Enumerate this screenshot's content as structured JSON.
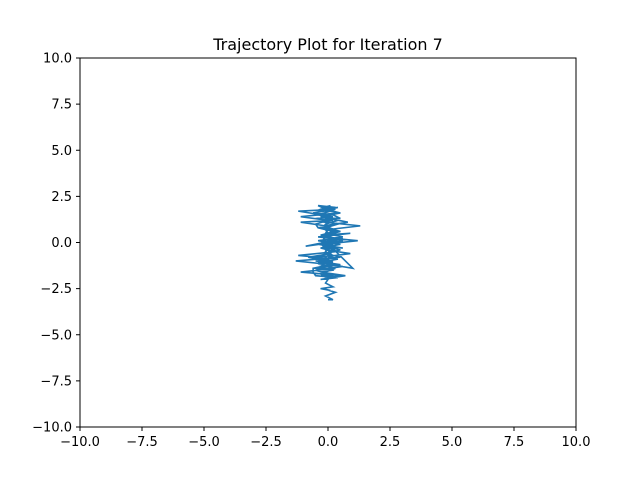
{
  "chart_data": {
    "type": "line",
    "title": "Trajectory Plot for Iteration 7",
    "xlabel": "",
    "ylabel": "",
    "xlim": [
      -10,
      10
    ],
    "ylim": [
      -10,
      10
    ],
    "xticks": [
      -10,
      -7.5,
      -5,
      -2.5,
      0,
      2.5,
      5,
      7.5,
      10
    ],
    "yticks": [
      -10,
      -7.5,
      -5,
      -2.5,
      0,
      2.5,
      5,
      7.5,
      10
    ],
    "xtick_labels": [
      "−10.0",
      "−7.5",
      "−5.0",
      "−2.5",
      "0.0",
      "2.5",
      "5.0",
      "7.5",
      "10.0"
    ],
    "ytick_labels": [
      "−10.0",
      "−7.5",
      "−5.0",
      "−2.5",
      "0.0",
      "2.5",
      "5.0",
      "7.5",
      "10.0"
    ],
    "grid": false,
    "series": [
      {
        "color": "#1f77b4",
        "x": [
          0.0,
          0.2,
          -0.1,
          0.3,
          -0.2,
          0.1,
          -0.3,
          0.2,
          -0.1,
          0.0,
          -0.2,
          0.4,
          -0.3,
          0.1,
          -0.1,
          0.3,
          -0.6,
          0.5,
          -0.5,
          0.2,
          -0.8,
          0.3,
          0.9,
          -0.1,
          -0.2,
          0.6,
          -0.4,
          0.2,
          -0.9,
          0.6,
          -0.1,
          0.0,
          -0.1,
          0.4,
          -0.1,
          -1.1,
          0.2,
          -0.5,
          0.2,
          -1.2,
          0.3,
          -0.2,
          0.1,
          -0.3,
          0.4,
          -0.6,
          0.2,
          0.5,
          -0.3,
          0.8,
          -0.2,
          0.4,
          -0.4,
          0.2,
          -0.2,
          0.3,
          -0.2,
          0.6,
          -0.3,
          0.3,
          -0.1,
          0.1,
          -0.1,
          0.5,
          -1.3,
          0.1,
          -0.6,
          -0.6,
          -0.5,
          0.4,
          -0.3,
          0.7,
          -0.3,
          0.2,
          0.1,
          -0.2,
          -0.1,
          0.2,
          -0.1,
          0.0,
          -0.2,
          1.2,
          -0.4,
          0.9,
          -0.3,
          0.3,
          -0.2,
          -0.1,
          0.4,
          -0.3,
          0.5,
          -0.1,
          0.3,
          -0.4,
          0.1,
          -0.4,
          0.2,
          -0.1,
          1.3,
          0.0,
          -0.1,
          0.6,
          -0.4,
          0.5,
          -0.3,
          0.3,
          -1.2,
          0.4,
          -0.4,
          0.6,
          -0.5,
          0.0,
          -0.1,
          0.6,
          -1.1,
          0.3,
          -0.3,
          0.2,
          -0.8,
          0.1,
          0.0,
          0.2,
          -0.2,
          0.3,
          -0.1,
          0.5,
          -0.1,
          0.4,
          -0.2,
          0.1,
          -0.6,
          0.3,
          -0.2,
          0.1,
          -0.3,
          0.4,
          -1.1,
          0.0,
          -0.5,
          -0.4,
          0.2,
          -0.1,
          0.0,
          0.3,
          -0.2,
          0.5,
          -0.1,
          0.2,
          -0.2,
          0.1,
          1.0,
          -0.2,
          0.3,
          -0.1,
          0.2,
          0.1,
          -0.1,
          0.0
        ],
        "y": [
          -3.1,
          -3.1,
          -2.9,
          -2.7,
          -2.5,
          -2.6,
          -2.5,
          -2.4,
          -2.2,
          -2.0,
          -1.8,
          -1.9,
          -1.7,
          -1.8,
          -1.6,
          -1.4,
          -1.4,
          -1.2,
          -1.0,
          -1.1,
          -0.8,
          -0.7,
          -0.6,
          -0.4,
          -0.2,
          -0.3,
          -0.1,
          0.0,
          -0.2,
          0.2,
          0.3,
          0.5,
          0.7,
          0.6,
          0.9,
          1.1,
          1.2,
          1.3,
          1.4,
          1.7,
          1.8,
          1.9,
          2.0,
          1.8,
          1.9,
          1.6,
          1.5,
          1.3,
          1.4,
          1.1,
          0.9,
          1.0,
          0.8,
          0.6,
          0.4,
          0.5,
          0.3,
          0.1,
          -0.1,
          0.0,
          -0.3,
          -0.5,
          -0.6,
          -0.8,
          -1.0,
          -1.2,
          -1.4,
          -1.6,
          -1.8,
          -1.9,
          -2.0,
          -1.8,
          -1.6,
          -1.5,
          -1.3,
          -1.1,
          -0.9,
          -0.7,
          -0.5,
          -0.3,
          -0.1,
          0.1,
          0.3,
          0.5,
          0.4,
          0.6,
          0.8,
          1.0,
          1.2,
          1.4,
          1.6,
          1.8,
          1.9,
          2.0,
          1.7,
          1.5,
          1.3,
          1.1,
          0.9,
          0.7,
          0.5,
          0.3,
          0.1,
          -0.1,
          -0.3,
          -0.5,
          -0.7,
          -0.9,
          -1.1,
          -1.3,
          -1.5,
          -1.7,
          -1.9,
          -1.8,
          -1.6,
          -1.4,
          -1.2,
          -1.0,
          -0.8,
          -0.6,
          -0.4,
          -0.2,
          0.0,
          0.2,
          0.4,
          0.6,
          0.8,
          1.0,
          1.2,
          1.4,
          1.6,
          1.8,
          1.9,
          2.0,
          1.8,
          1.6,
          1.4,
          1.2,
          1.0,
          0.8,
          0.6,
          0.4,
          0.2,
          0.0,
          -0.2,
          -0.4,
          -0.6,
          -0.8,
          -1.0,
          -1.2,
          -1.4,
          0.2,
          0.0,
          -0.2,
          -0.4,
          -0.6,
          -0.8,
          -1.0
        ]
      }
    ]
  }
}
